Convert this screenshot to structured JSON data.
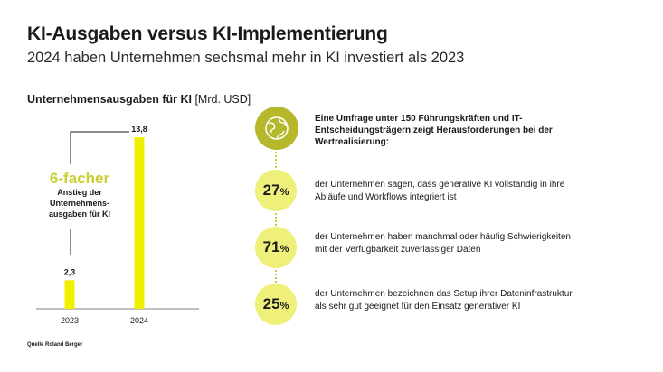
{
  "header": {
    "title": "KI-Ausgaben versus KI-Implementierung",
    "subtitle": "2024 haben Unternehmen sechsmal mehr in KI investiert als 2023"
  },
  "chart_label": {
    "bold": "Unternehmensausgaben für KI",
    "unit": " [Mrd. USD]"
  },
  "chart_data": {
    "type": "bar",
    "categories": [
      "2023",
      "2024"
    ],
    "values": [
      2.3,
      13.8
    ],
    "value_labels": [
      "2,3",
      "13,8"
    ],
    "title": "Unternehmensausgaben für KI [Mrd. USD]",
    "ylim": [
      0,
      13.8
    ],
    "bar_color": "#eef000",
    "grid": false
  },
  "callout": {
    "big": "6-facher",
    "small": "Anstieg der Unternehmens-ausgaben für KI"
  },
  "source": "Quelle Roland Berger",
  "intro": "Eine Umfrage unter 150 Führungskräften und IT-Entscheidungsträgern zeigt Herausforderungen bei der Wertrealisierung:",
  "stats": [
    {
      "value": "27",
      "unit": "%",
      "text": "der Unternehmen sagen, dass generative KI vollständig in ihre Abläufe und Workflows integriert ist"
    },
    {
      "value": "71",
      "unit": "%",
      "text": "der Unternehmen haben manchmal oder häufig Schwierigkeiten mit der Verfügbarkeit zuverlässiger Daten"
    },
    {
      "value": "25",
      "unit": "%",
      "text": "der Unternehmen bezeichnen das Setup ihrer Dateninfrastruktur als sehr gut geeignet für den Einsatz generativer KI"
    }
  ],
  "colors": {
    "accent": "#c8cf2e",
    "bar": "#eef000",
    "circle": "#eef07a",
    "globe": "#b4b82a"
  },
  "icons": {
    "globe": "globe-icon"
  }
}
